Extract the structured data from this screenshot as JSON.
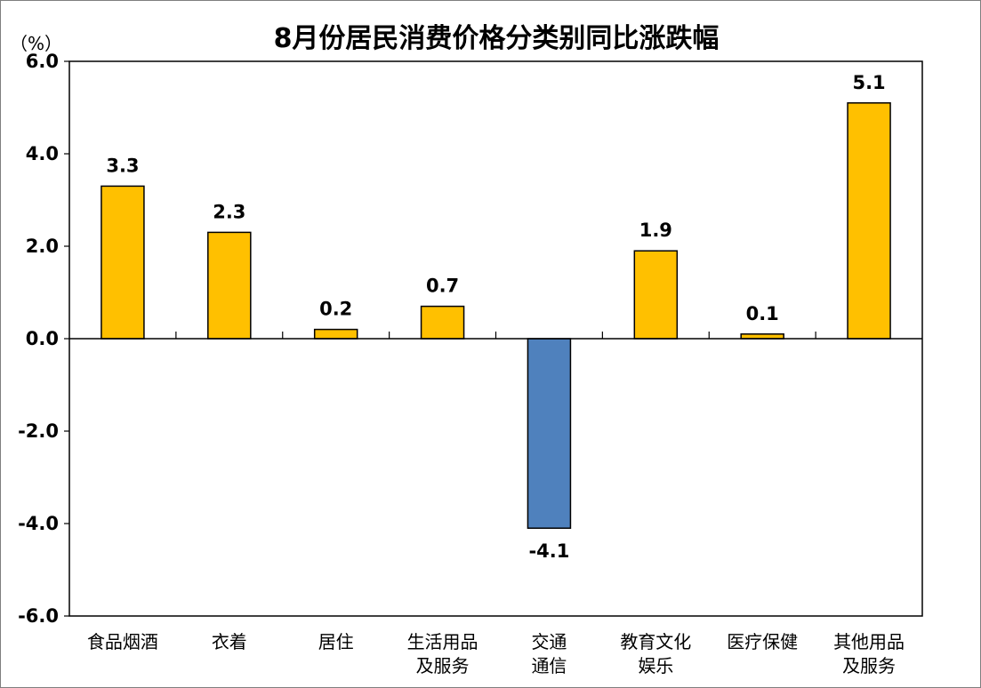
{
  "chart_data": {
    "type": "bar",
    "title": "8月份居民消费价格分类别同比涨跌幅",
    "unit_label": "（%）",
    "ylim": [
      -6,
      6
    ],
    "yticks": [
      "6.0",
      "4.0",
      "2.0",
      "0.0",
      "-2.0",
      "-4.0",
      "-6.0"
    ],
    "ytick_values": [
      6,
      4,
      2,
      0,
      -2,
      -4,
      -6
    ],
    "categories": [
      [
        "食品烟酒"
      ],
      [
        "衣着"
      ],
      [
        "居住"
      ],
      [
        "生活用品",
        "及服务"
      ],
      [
        "交通",
        "通信"
      ],
      [
        "教育文化",
        "娱乐"
      ],
      [
        "医疗保健"
      ],
      [
        "其他用品",
        "及服务"
      ]
    ],
    "values": [
      3.3,
      2.3,
      0.2,
      0.7,
      -4.1,
      1.9,
      0.1,
      5.1
    ],
    "data_labels": [
      "3.3",
      "2.3",
      "0.2",
      "0.7",
      "-4.1",
      "1.9",
      "0.1",
      "5.1"
    ],
    "colors": {
      "positive": "#FFC000",
      "negative": "#4F81BD",
      "outline": "#000000"
    },
    "grid": false,
    "legend": "none"
  }
}
